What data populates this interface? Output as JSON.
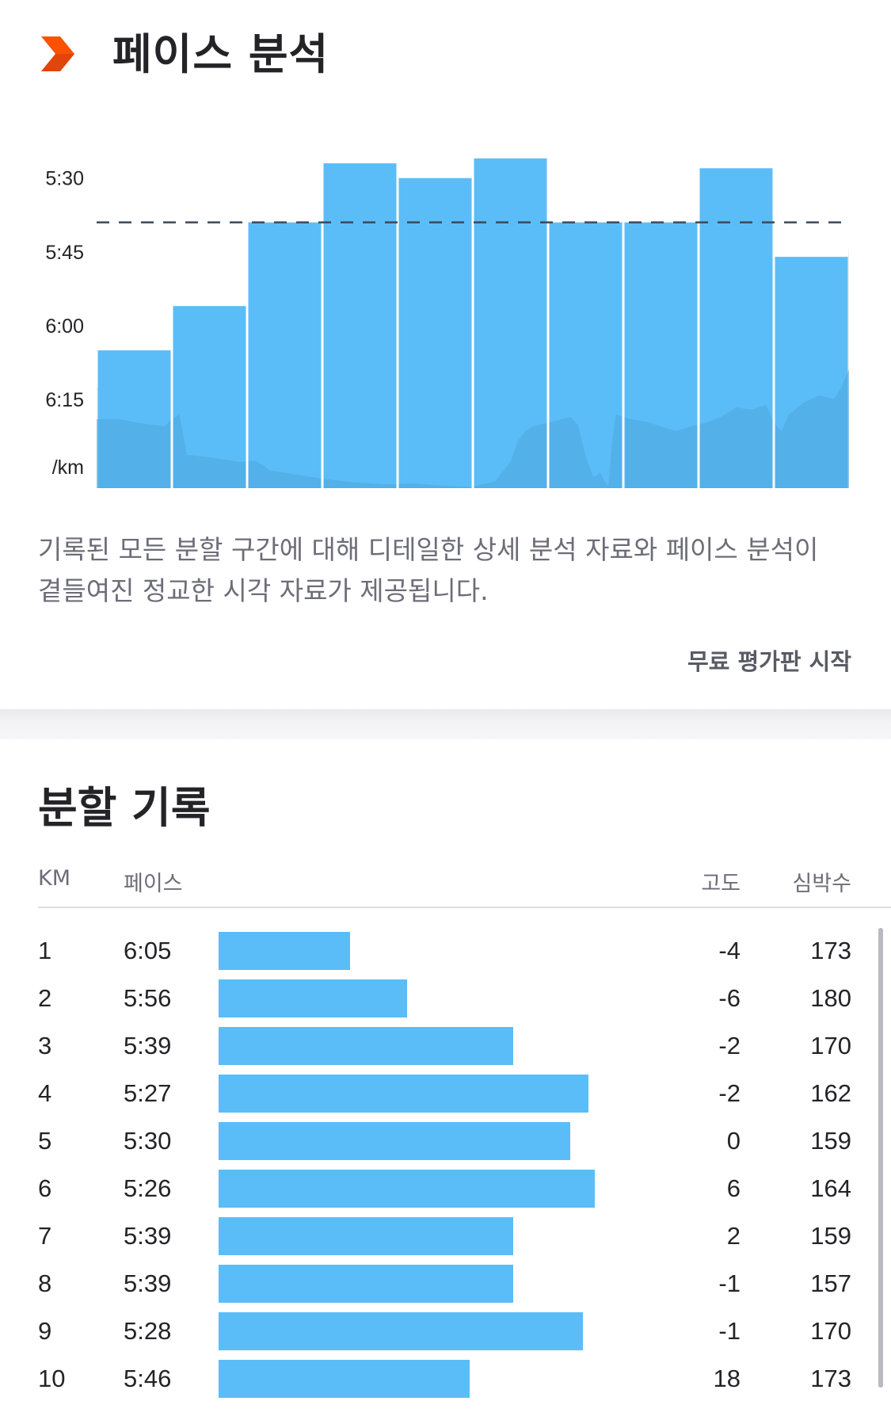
{
  "header": {
    "icon": "orange-chevron-icon",
    "title": "페이스 분석"
  },
  "colors": {
    "accent": "#fc5200",
    "bar": "#5bbdf7",
    "elevation": "#4ea6dd"
  },
  "chart_data": {
    "type": "bar",
    "x_unit": "km",
    "y_axis_label": "/km",
    "y_ticks": [
      "5:30",
      "5:45",
      "6:00",
      "6:15"
    ],
    "y_range_seconds": [
      317,
      393
    ],
    "y_inverted": true,
    "categories": [
      1,
      2,
      3,
      4,
      5,
      6,
      7,
      8,
      9,
      10
    ],
    "values_label": [
      "6:05",
      "5:56",
      "5:39",
      "5:27",
      "5:30",
      "5:26",
      "5:39",
      "5:39",
      "5:28",
      "5:46"
    ],
    "values_seconds": [
      365,
      356,
      339,
      327,
      330,
      326,
      339,
      339,
      328,
      346
    ],
    "average_line_seconds": 339,
    "elevation_profile": [
      [
        0,
        0.58
      ],
      [
        0.3,
        0.58
      ],
      [
        0.55,
        0.55
      ],
      [
        0.9,
        0.52
      ],
      [
        1.0,
        0.58
      ],
      [
        1.1,
        0.62
      ],
      [
        1.2,
        0.28
      ],
      [
        1.5,
        0.26
      ],
      [
        1.9,
        0.22
      ],
      [
        2.1,
        0.23
      ],
      [
        2.2,
        0.2
      ],
      [
        2.3,
        0.15
      ],
      [
        2.6,
        0.12
      ],
      [
        3.0,
        0.08
      ],
      [
        3.4,
        0.05
      ],
      [
        3.9,
        0.03
      ],
      [
        4.2,
        0.04
      ],
      [
        4.6,
        0.02
      ],
      [
        5.0,
        0.01
      ],
      [
        5.3,
        0.06
      ],
      [
        5.5,
        0.22
      ],
      [
        5.6,
        0.4
      ],
      [
        5.7,
        0.48
      ],
      [
        5.8,
        0.52
      ],
      [
        6.0,
        0.55
      ],
      [
        6.3,
        0.6
      ],
      [
        6.4,
        0.53
      ],
      [
        6.5,
        0.27
      ],
      [
        6.6,
        0.09
      ],
      [
        6.7,
        0.13
      ],
      [
        6.75,
        0.06
      ],
      [
        6.8,
        0.02
      ],
      [
        6.85,
        0.38
      ],
      [
        6.9,
        0.62
      ],
      [
        7.0,
        0.6
      ],
      [
        7.1,
        0.58
      ],
      [
        7.3,
        0.56
      ],
      [
        7.5,
        0.52
      ],
      [
        7.7,
        0.48
      ],
      [
        7.9,
        0.52
      ],
      [
        8.1,
        0.55
      ],
      [
        8.3,
        0.6
      ],
      [
        8.5,
        0.68
      ],
      [
        8.7,
        0.66
      ],
      [
        8.9,
        0.7
      ],
      [
        9.0,
        0.55
      ],
      [
        9.1,
        0.48
      ],
      [
        9.2,
        0.62
      ],
      [
        9.4,
        0.72
      ],
      [
        9.6,
        0.78
      ],
      [
        9.8,
        0.75
      ],
      [
        9.9,
        0.85
      ],
      [
        10.0,
        1.4
      ]
    ]
  },
  "description": "기록된 모든 분할 구간에 대해 디테일한 상세 분석 자료와 페이스 분석이 곁들여진 정교한 시각 자료가 제공됩니다.",
  "trial_link": "무료 평가판 시작",
  "splits": {
    "title": "분할 기록",
    "headers": {
      "km": "KM",
      "pace": "페이스",
      "elevation": "고도",
      "heart_rate": "심박수"
    },
    "rows": [
      {
        "km": "1",
        "pace": "6:05",
        "elevation": "-4",
        "heart_rate": "173"
      },
      {
        "km": "2",
        "pace": "5:56",
        "elevation": "-6",
        "heart_rate": "180"
      },
      {
        "km": "3",
        "pace": "5:39",
        "elevation": "-2",
        "heart_rate": "170"
      },
      {
        "km": "4",
        "pace": "5:27",
        "elevation": "-2",
        "heart_rate": "162"
      },
      {
        "km": "5",
        "pace": "5:30",
        "elevation": "0",
        "heart_rate": "159"
      },
      {
        "km": "6",
        "pace": "5:26",
        "elevation": "6",
        "heart_rate": "164"
      },
      {
        "km": "7",
        "pace": "5:39",
        "elevation": "2",
        "heart_rate": "159"
      },
      {
        "km": "8",
        "pace": "5:39",
        "elevation": "-1",
        "heart_rate": "157"
      },
      {
        "km": "9",
        "pace": "5:28",
        "elevation": "-1",
        "heart_rate": "170"
      },
      {
        "km": "10",
        "pace": "5:46",
        "elevation": "18",
        "heart_rate": "173"
      }
    ]
  }
}
